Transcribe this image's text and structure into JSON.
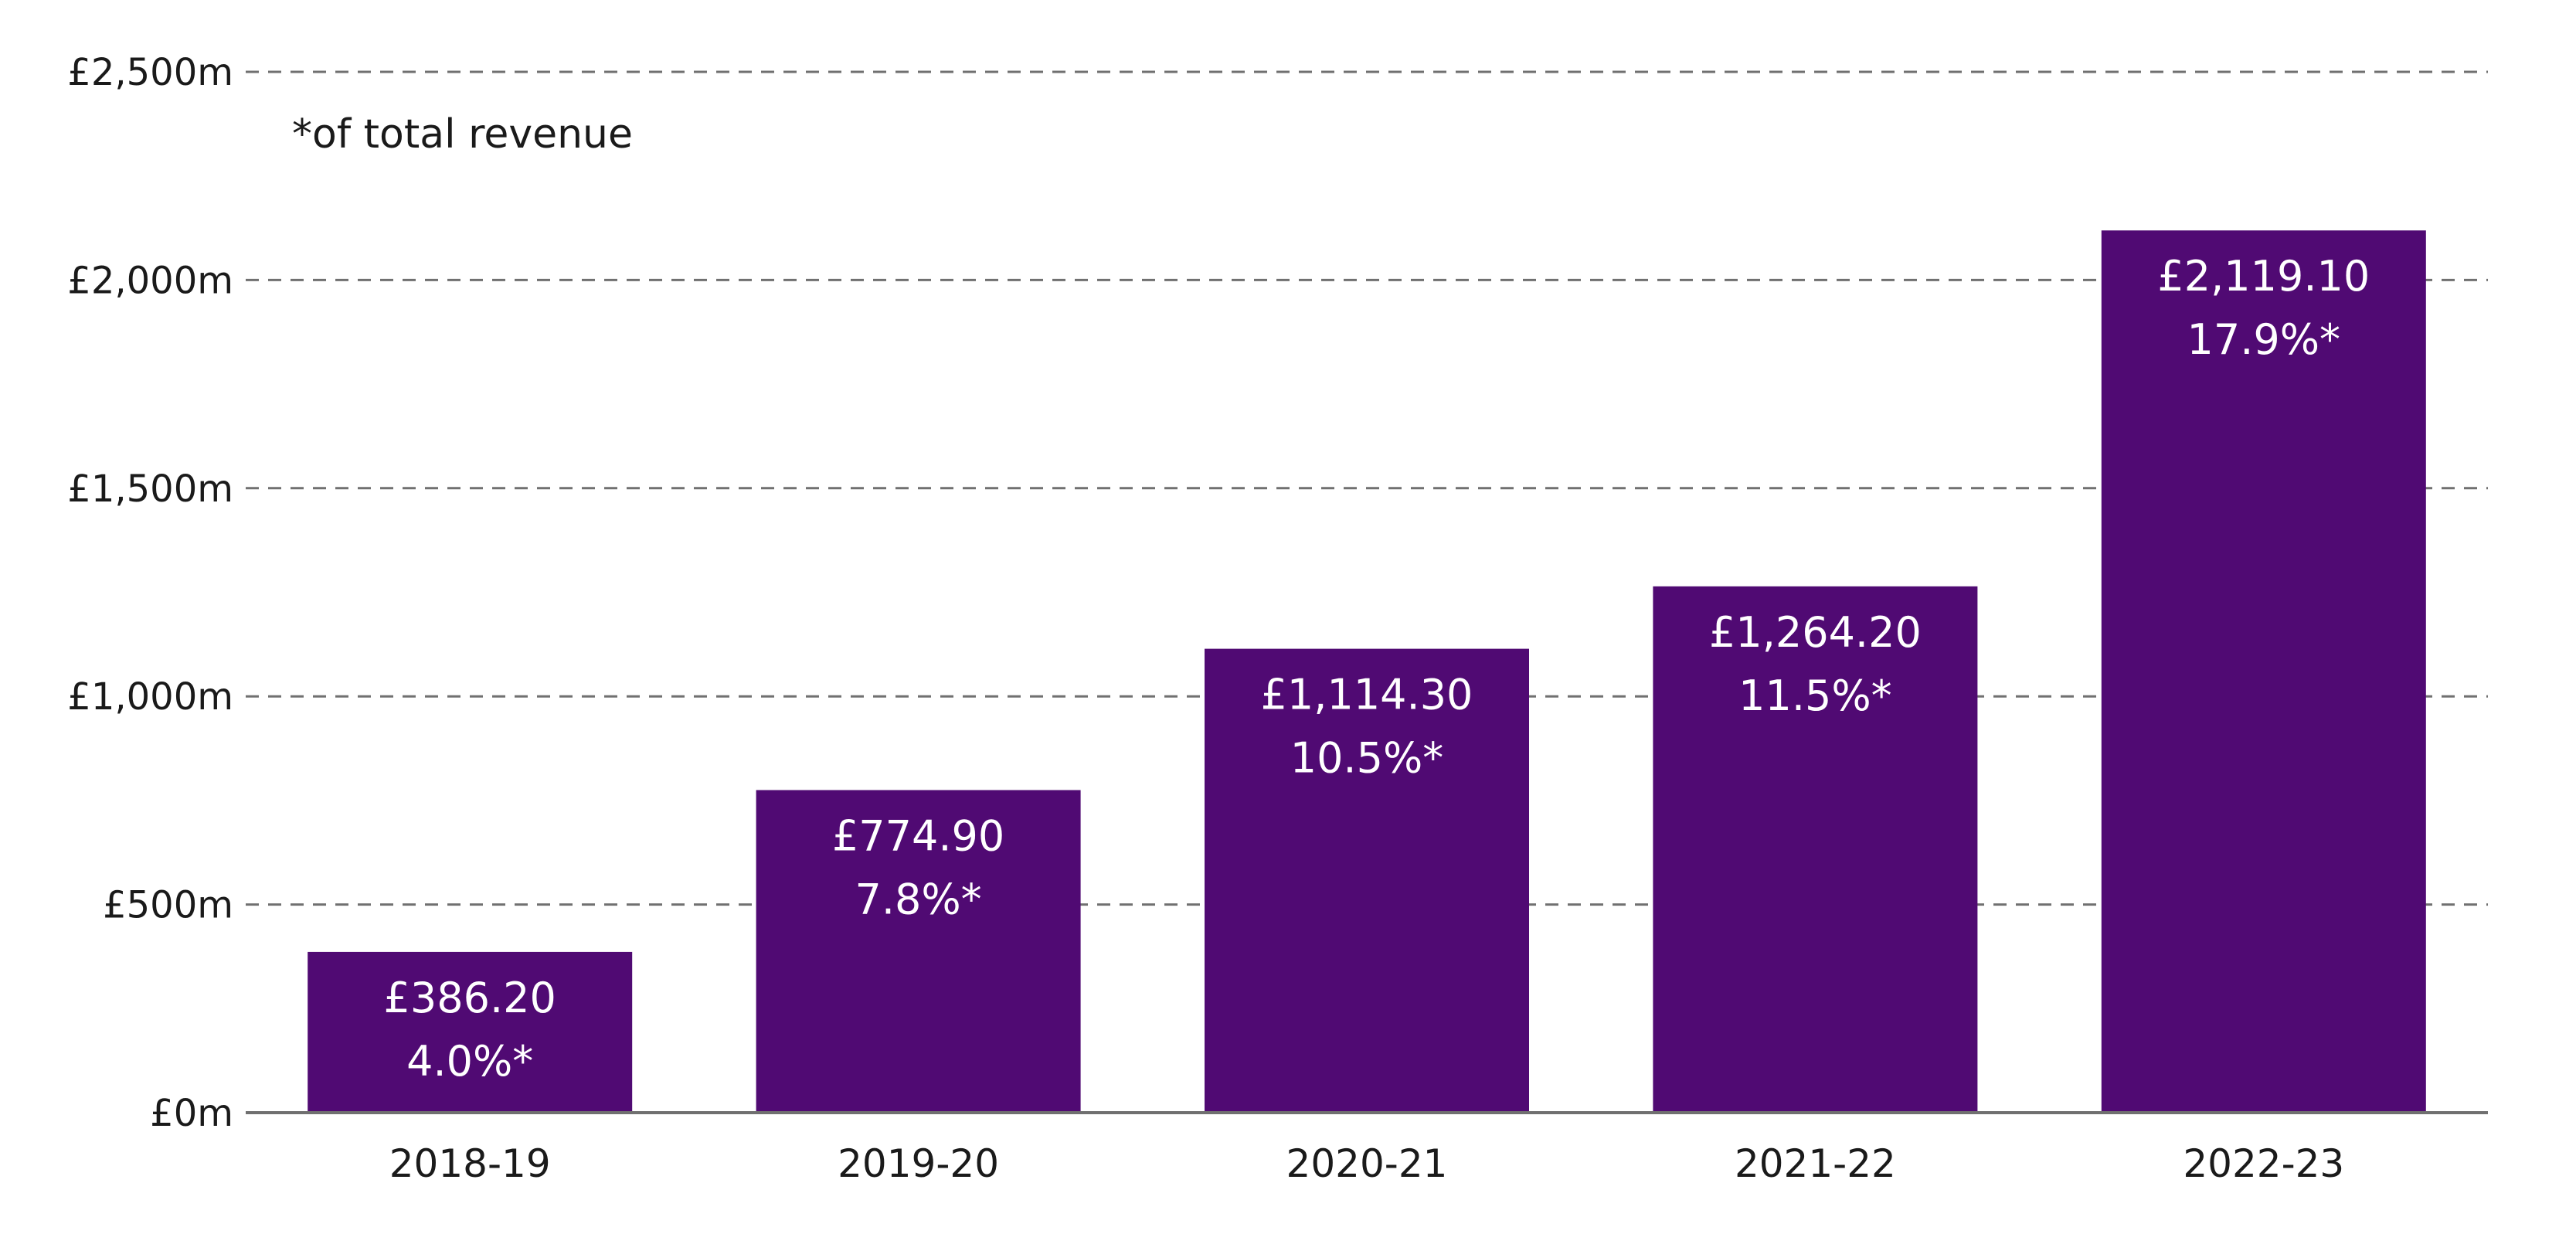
{
  "chart_data": {
    "type": "bar",
    "categories": [
      "2018-19",
      "2019-20",
      "2020-21",
      "2021-22",
      "2022-23"
    ],
    "values": [
      386.2,
      774.9,
      1114.3,
      1264.2,
      2119.1
    ],
    "value_labels": [
      "£386.20",
      "£774.90",
      "£1,114.30",
      "£1,264.20",
      "£2,119.10"
    ],
    "percent_labels": [
      "4.0%*",
      "7.8%*",
      "10.5%*",
      "11.5%*",
      "17.9%*"
    ],
    "ylim": [
      0,
      2500
    ],
    "yticks": [
      0,
      500,
      1000,
      1500,
      2000,
      2500
    ],
    "ytick_labels": [
      "£0m",
      "£500m",
      "£1,000m",
      "£1,500m",
      "£2,000m",
      "£2,500m"
    ],
    "annotation": "*of total revenue",
    "title": "",
    "xlabel": "",
    "ylabel": "",
    "grid": true,
    "grid_style": "dashed",
    "colors": {
      "bar": "#500a73",
      "grid": "#707070",
      "axis": "#707070",
      "bar_text": "#ffffff",
      "text": "#1a1a1a"
    }
  }
}
